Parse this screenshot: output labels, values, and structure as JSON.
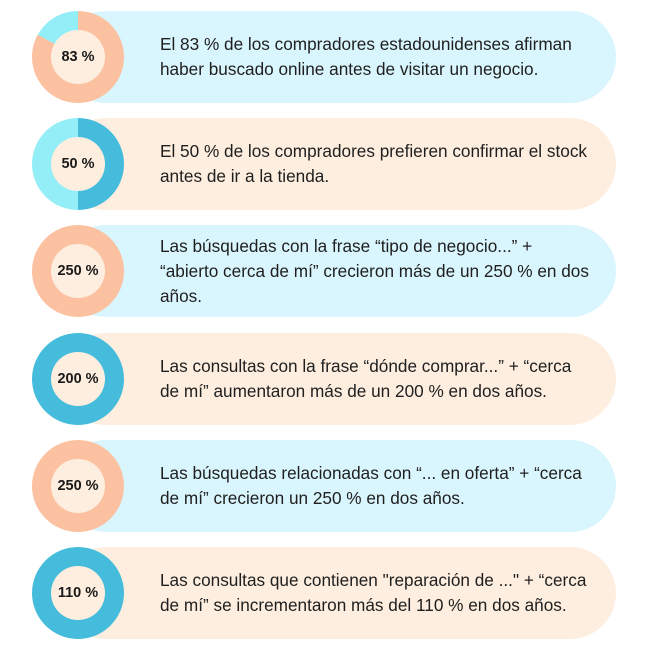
{
  "colors": {
    "teal_dark": "#45bcdc",
    "teal_light": "#93eef8",
    "peach": "#fbc1a0",
    "cream": "#fdeedf",
    "blue_pill": "#d9f5fd"
  },
  "stats": [
    {
      "percent_label": "83 %",
      "ring_fraction": 0.83,
      "ring_color": "#fbc1a0",
      "track_color": "#93eef8",
      "pill_color": "#d9f5fd",
      "text": "El 83 % de los compradores estadounidenses afirman haber buscado online antes de visitar un negocio."
    },
    {
      "percent_label": "50 %",
      "ring_fraction": 0.5,
      "ring_color": "#45bcdc",
      "track_color": "#93eef8",
      "pill_color": "#fdeedf",
      "text": "El 50 % de los compradores prefieren confirmar el stock antes de ir a la tienda."
    },
    {
      "percent_label": "250 %",
      "ring_fraction": 1,
      "ring_color": "#fbc1a0",
      "track_color": "#fbc1a0",
      "pill_color": "#d9f5fd",
      "text": "Las búsquedas con la frase “tipo de negocio...” + “abierto cerca de mí” crecieron más de un 250 % en dos años."
    },
    {
      "percent_label": "200 %",
      "ring_fraction": 1,
      "ring_color": "#45bcdc",
      "track_color": "#45bcdc",
      "pill_color": "#fdeedf",
      "text": "Las consultas con la frase “dónde comprar...” + “cerca de mí” aumentaron más de un 200 % en dos años."
    },
    {
      "percent_label": "250 %",
      "ring_fraction": 1,
      "ring_color": "#fbc1a0",
      "track_color": "#fbc1a0",
      "pill_color": "#d9f5fd",
      "text": "Las búsquedas relacionadas con “... en oferta” + “cerca de mí” crecieron un 250 % en dos años."
    },
    {
      "percent_label": "110 %",
      "ring_fraction": 1,
      "ring_color": "#45bcdc",
      "track_color": "#45bcdc",
      "pill_color": "#fdeedf",
      "text": "Las consultas que contienen \"reparación de ...\" + “cerca de mí” se incrementaron más del 110 % en dos años."
    }
  ]
}
